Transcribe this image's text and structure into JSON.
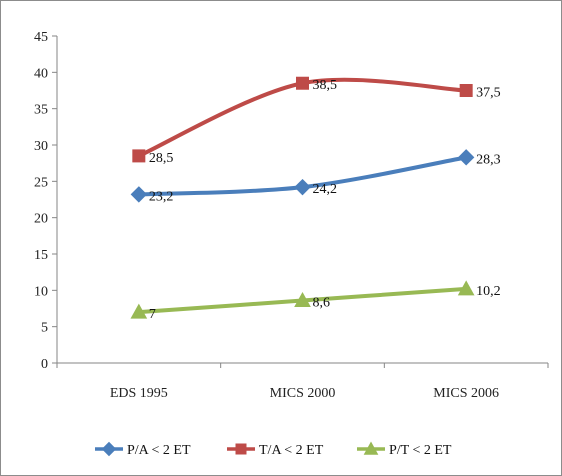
{
  "chart_data": {
    "type": "line",
    "categories": [
      "EDS 1995",
      "MICS 2000",
      "MICS 2006"
    ],
    "series": [
      {
        "name": "P/A < 2 ET",
        "values": [
          23.2,
          24.2,
          28.3
        ],
        "labels": [
          "23,2",
          "24,2",
          "28,3"
        ],
        "color": "#4a7ebb",
        "marker": "diamond"
      },
      {
        "name": "T/A < 2 ET",
        "values": [
          28.5,
          38.5,
          37.5
        ],
        "labels": [
          "28,5",
          "38,5",
          "37,5"
        ],
        "color": "#be4b48",
        "marker": "square"
      },
      {
        "name": "P/T < 2 ET",
        "values": [
          7,
          8.6,
          10.2
        ],
        "labels": [
          "7",
          "8,6",
          "10,2"
        ],
        "color": "#98b954",
        "marker": "triangle"
      }
    ],
    "ylim": [
      0,
      45
    ],
    "yticks": [
      "0",
      "5",
      "10",
      "15",
      "20",
      "25",
      "30",
      "35",
      "40",
      "45"
    ],
    "title": "",
    "xlabel": "",
    "ylabel": "",
    "grid": false,
    "legend_position": "bottom"
  }
}
